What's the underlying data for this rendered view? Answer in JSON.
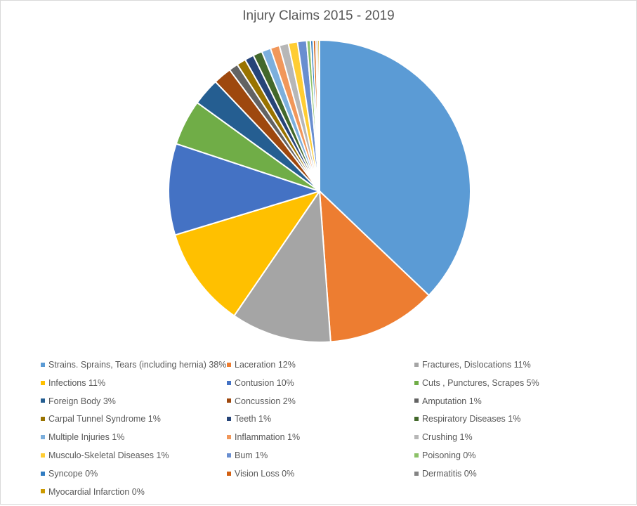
{
  "chart_data": {
    "type": "pie",
    "title": "Injury Claims 2015 - 2019",
    "start_angle_deg": 0,
    "direction": "clockwise",
    "legend_position": "bottom",
    "slices": [
      {
        "label": "Strains. Sprains, Tears (including hernia)",
        "value": 38,
        "value_label": "38%",
        "color": "#5b9bd5"
      },
      {
        "label": "Laceration",
        "value": 12,
        "value_label": "12%",
        "color": "#ed7d31"
      },
      {
        "label": "Fractures,  Dislocations",
        "value": 11,
        "value_label": "11%",
        "color": "#a5a5a5"
      },
      {
        "label": "Infections",
        "value": 11,
        "value_label": "11%",
        "color": "#ffc000"
      },
      {
        "label": "Contusion",
        "value": 10,
        "value_label": "10%",
        "color": "#4472c4"
      },
      {
        "label": "Cuts , Punctures, Scrapes",
        "value": 5,
        "value_label": "5%",
        "color": "#70ad47"
      },
      {
        "label": "Foreign Body",
        "value": 3,
        "value_label": "3%",
        "color": "#255e91"
      },
      {
        "label": "Concussion",
        "value": 2,
        "value_label": "2%",
        "color": "#9e480e"
      },
      {
        "label": "Amputation",
        "value": 1,
        "value_label": "1%",
        "color": "#636363"
      },
      {
        "label": "Carpal Tunnel Syndrome",
        "value": 1,
        "value_label": "1%",
        "color": "#997300"
      },
      {
        "label": "Teeth",
        "value": 1,
        "value_label": "1%",
        "color": "#264478"
      },
      {
        "label": "Respiratory Diseases",
        "value": 1,
        "value_label": "1%",
        "color": "#43682b"
      },
      {
        "label": "Multiple Injuries",
        "value": 1,
        "value_label": "1%",
        "color": "#7cafdd"
      },
      {
        "label": "Inflammation",
        "value": 1,
        "value_label": "1%",
        "color": "#f1975a"
      },
      {
        "label": "Crushing",
        "value": 1,
        "value_label": "1%",
        "color": "#b7b7b7"
      },
      {
        "label": "Musculo-Skeletal Diseases",
        "value": 1,
        "value_label": "1%",
        "color": "#ffcd33"
      },
      {
        "label": "Bum",
        "value": 1,
        "value_label": "1%",
        "color": "#698ed0"
      },
      {
        "label": "Poisoning",
        "value": 0.4,
        "value_label": "0%",
        "color": "#8cc168"
      },
      {
        "label": "Syncope",
        "value": 0.3,
        "value_label": "0%",
        "color": "#327dc2"
      },
      {
        "label": "Vision Loss",
        "value": 0.3,
        "value_label": "0%",
        "color": "#d26012"
      },
      {
        "label": "Dermatitis",
        "value": 0.2,
        "value_label": "0%",
        "color": "#848484"
      },
      {
        "label": "Myocardial Infarction",
        "value": 0.2,
        "value_label": "0%",
        "color": "#cc9a00"
      }
    ]
  }
}
